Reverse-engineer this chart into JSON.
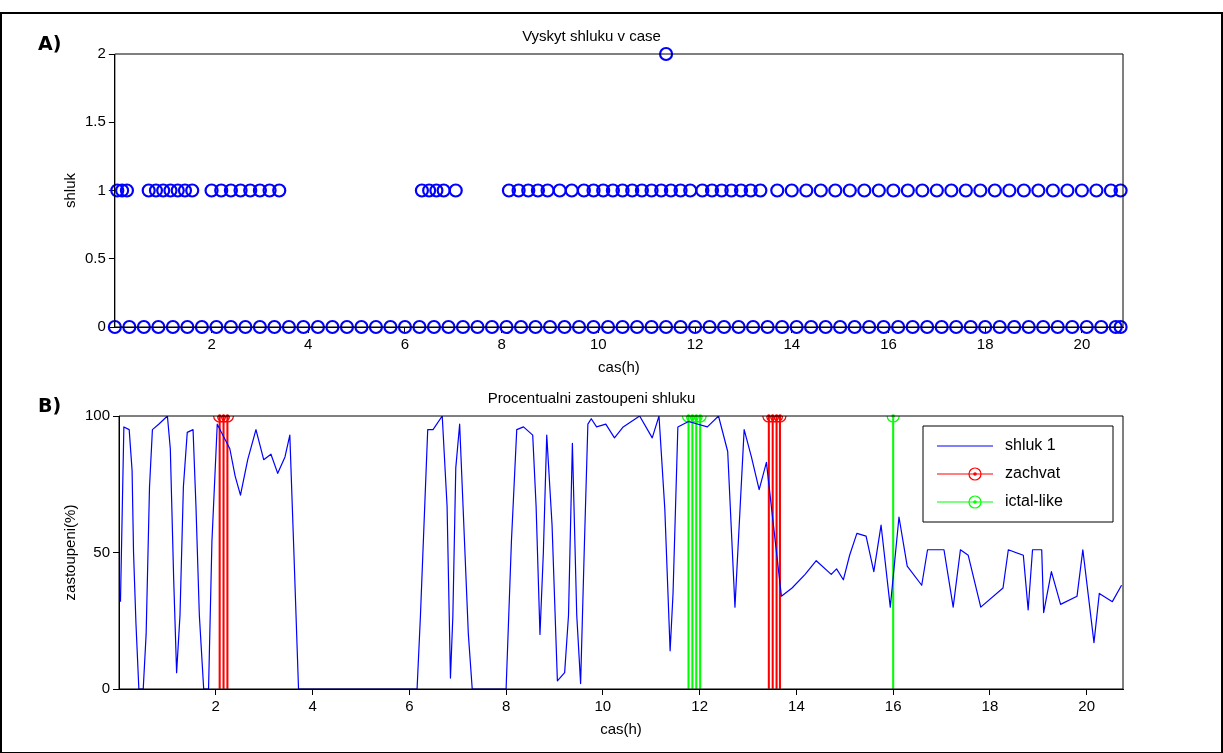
{
  "chart_data": [
    {
      "type": "scatter",
      "title": "Vyskyt shluku v case",
      "xlabel": "cas(h)",
      "ylabel": "shluk",
      "annotations": [
        "A)"
      ],
      "xlim": [
        0,
        20.85
      ],
      "ylim": [
        0,
        2
      ],
      "xticks": [
        2,
        4,
        6,
        8,
        10,
        12,
        14,
        16,
        18,
        20
      ],
      "yticks": [
        0,
        0.5,
        1,
        1.5,
        2
      ],
      "marker": "circle",
      "series": [
        {
          "color": "#0000ff",
          "x": [
            0.05,
            0.15,
            0.25,
            0.7,
            0.85,
            1.0,
            1.15,
            1.3,
            1.45,
            1.6,
            2.0,
            2.2,
            2.4,
            2.6,
            2.8,
            3.0,
            3.2,
            3.4,
            6.35,
            6.5,
            6.65,
            6.8,
            7.05,
            8.15,
            8.35,
            8.55,
            8.75,
            8.95,
            9.2,
            9.45,
            9.7,
            9.9,
            10.1,
            10.3,
            10.5,
            10.7,
            10.9,
            11.1,
            11.3,
            11.5,
            11.7,
            11.9,
            12.15,
            12.35,
            12.55,
            12.75,
            12.95,
            13.15,
            13.35,
            13.7,
            14.0,
            14.3,
            14.6,
            14.9,
            15.2,
            15.5,
            15.8,
            16.1,
            16.4,
            16.7,
            17.0,
            17.3,
            17.6,
            17.9,
            18.2,
            18.5,
            18.8,
            19.1,
            19.4,
            19.7,
            20.0,
            20.3,
            20.6,
            20.8
          ],
          "values": [
            1,
            1,
            1,
            1,
            1,
            1,
            1,
            1,
            1,
            1,
            1,
            1,
            1,
            1,
            1,
            1,
            1,
            1,
            1,
            1,
            1,
            1,
            1,
            1,
            1,
            1,
            1,
            1,
            1,
            1,
            1,
            1,
            1,
            1,
            1,
            1,
            1,
            1,
            1,
            1,
            1,
            1,
            1,
            1,
            1,
            1,
            1,
            1,
            1,
            1,
            1,
            1,
            1,
            1,
            1,
            1,
            1,
            1,
            1,
            1,
            1,
            1,
            1,
            1,
            1,
            1,
            1,
            1,
            1,
            1,
            1,
            1,
            1,
            1
          ]
        },
        {
          "color": "#0000ff",
          "x": [
            0,
            0.3,
            0.6,
            0.9,
            1.2,
            1.5,
            1.8,
            2.1,
            2.4,
            2.7,
            3.0,
            3.3,
            3.6,
            3.9,
            4.2,
            4.5,
            4.8,
            5.1,
            5.4,
            5.7,
            6.0,
            6.3,
            6.6,
            6.9,
            7.2,
            7.5,
            7.8,
            8.1,
            8.4,
            8.7,
            9.0,
            9.3,
            9.6,
            9.9,
            10.2,
            10.5,
            10.8,
            11.1,
            11.4,
            11.7,
            12.0,
            12.3,
            12.6,
            12.9,
            13.2,
            13.5,
            13.8,
            14.1,
            14.4,
            14.7,
            15.0,
            15.3,
            15.6,
            15.9,
            16.2,
            16.5,
            16.8,
            17.1,
            17.4,
            17.7,
            18.0,
            18.3,
            18.6,
            18.9,
            19.2,
            19.5,
            19.8,
            20.1,
            20.4,
            20.7,
            20.8
          ],
          "values": [
            0,
            0,
            0,
            0,
            0,
            0,
            0,
            0,
            0,
            0,
            0,
            0,
            0,
            0,
            0,
            0,
            0,
            0,
            0,
            0,
            0,
            0,
            0,
            0,
            0,
            0,
            0,
            0,
            0,
            0,
            0,
            0,
            0,
            0,
            0,
            0,
            0,
            0,
            0,
            0,
            0,
            0,
            0,
            0,
            0,
            0,
            0,
            0,
            0,
            0,
            0,
            0,
            0,
            0,
            0,
            0,
            0,
            0,
            0,
            0,
            0,
            0,
            0,
            0,
            0,
            0,
            0,
            0,
            0,
            0,
            0
          ]
        },
        {
          "color": "#0000ff",
          "x": [
            11.4
          ],
          "values": [
            2
          ]
        }
      ]
    },
    {
      "type": "line",
      "title": "Procentualni zastoupeni shluku",
      "xlabel": "cas(h)",
      "ylabel": "zastoupeni(%)",
      "annotations": [
        "B)"
      ],
      "xlim": [
        0,
        20.75
      ],
      "ylim": [
        0,
        100
      ],
      "xticks": [
        2,
        4,
        6,
        8,
        10,
        12,
        14,
        16,
        18,
        20
      ],
      "yticks": [
        0,
        50,
        100
      ],
      "legend": "top right",
      "series": [
        {
          "name": "shluk 1",
          "color": "#0000ff",
          "marker": "none",
          "x": [
            0.03,
            0.1,
            0.21,
            0.27,
            0.3,
            0.35,
            0.41,
            0.5,
            0.56,
            0.63,
            0.69,
            0.82,
            1.0,
            1.06,
            1.13,
            1.19,
            1.26,
            1.33,
            1.41,
            1.53,
            1.59,
            1.66,
            1.75,
            1.85,
            1.92,
            2.03,
            2.29,
            2.4,
            2.51,
            2.66,
            2.83,
            2.99,
            3.14,
            3.28,
            3.43,
            3.53,
            3.62,
            3.71,
            6.16,
            6.23,
            6.38,
            6.49,
            6.68,
            6.78,
            6.85,
            6.9,
            6.96,
            7.04,
            7.11,
            7.22,
            7.3,
            8.0,
            8.11,
            8.22,
            8.36,
            8.55,
            8.62,
            8.7,
            8.77,
            8.84,
            8.95,
            9.06,
            9.21,
            9.29,
            9.37,
            9.46,
            9.54,
            9.62,
            9.69,
            9.76,
            9.87,
            10.06,
            10.24,
            10.42,
            10.76,
            11.02,
            11.16,
            11.28,
            11.39,
            11.45,
            11.55,
            11.77,
            12.16,
            12.39,
            12.58,
            12.73,
            12.92,
            13.07,
            13.23,
            13.38,
            13.69,
            13.91,
            14.18,
            14.41,
            14.72,
            14.83,
            14.97,
            15.1,
            15.25,
            15.44,
            15.6,
            15.75,
            15.94,
            16.12,
            16.29,
            16.59,
            16.71,
            17.05,
            17.24,
            17.39,
            17.55,
            17.81,
            18.27,
            18.38,
            18.69,
            18.79,
            18.88,
            19.07,
            19.11,
            19.27,
            19.46,
            19.8,
            19.92,
            20.15,
            20.26,
            20.53,
            20.72
          ],
          "values": [
            32,
            96,
            95,
            80,
            50,
            24,
            0,
            0,
            20,
            74,
            95,
            97,
            100,
            88,
            40,
            6,
            27,
            74,
            94,
            95,
            67,
            27,
            0,
            0,
            54,
            97,
            88,
            78,
            71,
            84,
            95,
            84,
            86,
            79,
            85,
            93,
            47,
            0,
            0,
            27,
            95,
            95,
            100,
            67,
            4,
            27,
            81,
            97,
            67,
            20,
            0,
            0,
            54,
            95,
            96,
            93,
            67,
            20,
            50,
            93,
            60,
            3,
            6,
            27,
            90,
            27,
            2,
            54,
            97,
            99,
            96,
            97,
            92,
            96,
            100,
            92,
            100,
            66,
            14,
            35,
            96,
            98,
            96,
            100,
            87,
            30,
            95,
            85,
            73,
            83,
            34,
            37,
            42,
            47,
            42,
            44,
            40,
            49,
            57,
            56,
            43,
            60,
            30,
            63,
            45,
            38,
            51,
            51,
            30,
            51,
            49,
            30,
            37,
            51,
            49,
            29,
            51,
            51,
            28,
            43,
            31,
            34,
            51,
            17,
            35,
            32,
            38
          ]
        },
        {
          "name": "zachvat",
          "type": "lollipop",
          "color": "#ff0000",
          "marker": "circle",
          "x": [
            2.08,
            2.16,
            2.24,
            13.43,
            13.51,
            13.59,
            13.66
          ],
          "values": [
            100,
            100,
            100,
            100,
            100,
            100,
            100
          ]
        },
        {
          "name": "ictal-like",
          "type": "lollipop",
          "color": "#00ff00",
          "marker": "circle",
          "x": [
            11.77,
            11.85,
            11.93,
            12.01,
            16.0
          ],
          "values": [
            100,
            100,
            100,
            100,
            100
          ]
        }
      ]
    }
  ]
}
